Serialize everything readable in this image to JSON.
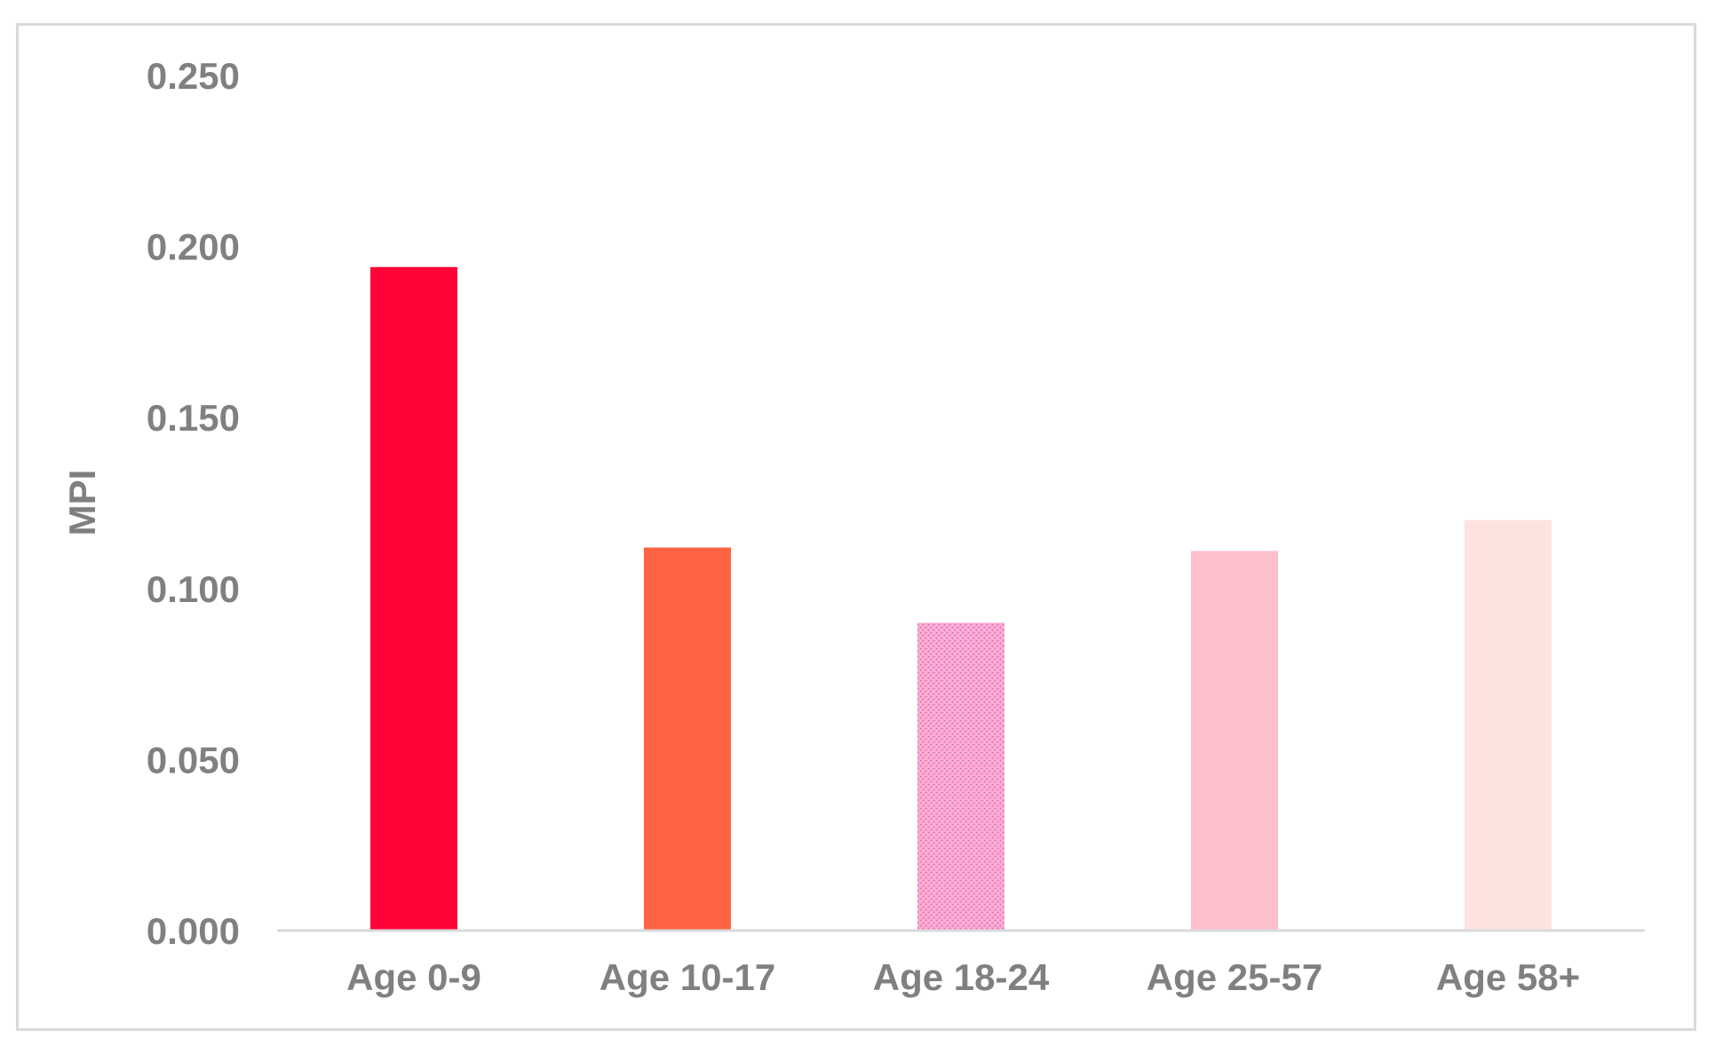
{
  "chart_data": {
    "type": "bar",
    "title": "",
    "xlabel": "",
    "ylabel": "MPI",
    "categories": [
      "Age 0-9",
      "Age 10-17",
      "Age 18-24",
      "Age 25-57",
      "Age 58+"
    ],
    "values": [
      0.194,
      0.112,
      0.09,
      0.111,
      0.12
    ],
    "colors": [
      "#ff0439",
      "#ff6442",
      "#f78fc4",
      "#fcc0cd",
      "#fde3df"
    ],
    "patterns": [
      "solid",
      "solid",
      "dotted",
      "solid",
      "solid"
    ],
    "ylim": [
      0,
      0.25
    ],
    "yticks": [
      "0.000",
      "0.050",
      "0.100",
      "0.150",
      "0.200",
      "0.250"
    ],
    "ytick_values": [
      0,
      0.05,
      0.1,
      0.15,
      0.2,
      0.25
    ],
    "grid": false,
    "legend": "none"
  }
}
